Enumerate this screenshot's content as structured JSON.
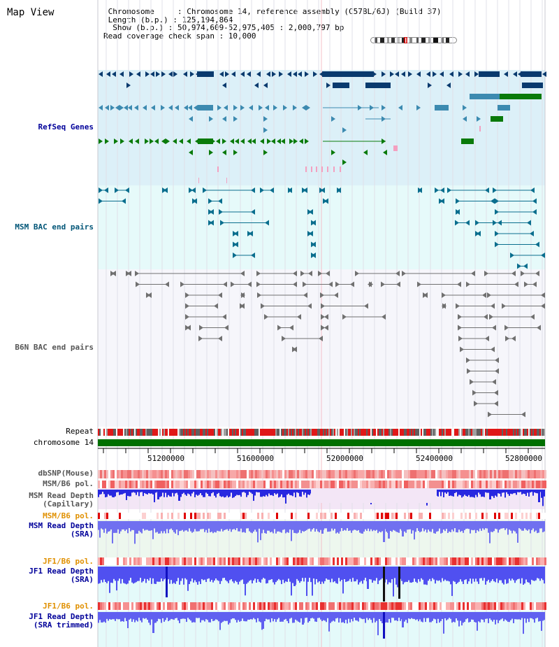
{
  "title": "Map View",
  "info_lines": [
    " Chromosome     : Chromosome 14, reference assembly (C57BL/6J) (Build 37)",
    " Length (b.p.) : 125,194,864",
    "  Show (b.p.) : 50,974,609-52,975,405 : 2,000,797 bp",
    "Read coverage check span : 10,000"
  ],
  "tracks": {
    "refseq": "RefSeq Genes",
    "msm_bac": "MSM BAC end pairs",
    "b6n_bac": "B6N BAC end pairs",
    "repeat": "Repeat",
    "chromosome": "chromosome 14",
    "dbsnp": "dbSNP(Mouse)",
    "msm_b6_pol": "MSM/B6 pol.",
    "msm_depth_cap_1": "MSM Read Depth",
    "msm_depth_cap_2": "(Capillary)",
    "msm_b6_pol_2": "MSM/B6 pol.",
    "msm_depth_sra_1": "MSM Read Depth",
    "msm_depth_sra_2": "(SRA)",
    "jf1_b6_pol_1": "JF1/B6 pol.",
    "jf1_depth_sra_1": "JF1 Read Depth",
    "jf1_depth_sra_2": "(SRA)",
    "jf1_b6_pol_2": "JF1/B6 pol.",
    "jf1_depth_trim_1": "JF1 Read Depth",
    "jf1_depth_trim_2": "(SRA trimmed)"
  },
  "axis_ticks": [
    "51200000",
    "51600000",
    "52000000",
    "52400000",
    "52800000"
  ],
  "colors": {
    "refseq_bg": "#dcf0f8",
    "msm_bac_bg": "#e6fafa",
    "b6n_bac_bg": "#f6f6fb",
    "refseq_dark": "#0a3a6e",
    "refseq_mid": "#3c8ab0",
    "refseq_green": "#0a7a0a",
    "msm_bac": "#0a6e8e",
    "b6n_bac": "#707070",
    "chromosome": "#007000",
    "depth_blue": "#3030e0"
  }
}
